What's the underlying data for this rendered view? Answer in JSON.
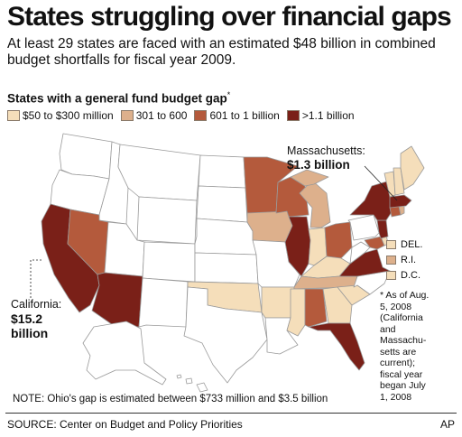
{
  "title": "States struggling over financial gaps",
  "subtitle": "At least 29 states are faced with an estimated $48 billion in combined budget shortfalls for fiscal year 2009.",
  "legend": {
    "title": "States with a general fund budget gap",
    "title_mark": "*",
    "items": [
      {
        "label": "$50 to $300 million",
        "color": "#f5deba"
      },
      {
        "label": "301 to 600",
        "color": "#ddb08c"
      },
      {
        "label": "601 to 1 billion",
        "color": "#b45a3c"
      },
      {
        "label": ">1.1 billion",
        "color": "#7a2018"
      }
    ]
  },
  "colors": {
    "no_gap": "#ffffff",
    "border": "#9a9a9a"
  },
  "callouts": {
    "massachusetts": {
      "name": "Massachusetts:",
      "value": "$1.3 billion"
    },
    "california": {
      "name": "California:",
      "value_line1": "$15.2",
      "value_line2": "billion"
    }
  },
  "small_states": [
    {
      "label": "DEL.",
      "color": "#f5deba"
    },
    {
      "label": "R.I.",
      "color": "#ddb08c"
    },
    {
      "label": "D.C.",
      "color": "#f5deba"
    }
  ],
  "footnote": [
    "* As of Aug.",
    "5, 2008",
    "(California",
    "and",
    "Massachu-",
    "setts are",
    "current);",
    "fiscal year",
    "began July",
    "1, 2008"
  ],
  "note": "NOTE: Ohio's gap is estimated between $733 million and $3.5 billion",
  "source": "SOURCE: Center on Budget and Policy Priorities",
  "credit": "AP",
  "states": [
    {
      "name": "California",
      "category": 4
    },
    {
      "name": "Nevada",
      "category": 3
    },
    {
      "name": "Arizona",
      "category": 4
    },
    {
      "name": "Minnesota",
      "category": 3
    },
    {
      "name": "Wisconsin",
      "category": 3
    },
    {
      "name": "Iowa",
      "category": 2
    },
    {
      "name": "Illinois",
      "category": 4
    },
    {
      "name": "Michigan",
      "category": 2
    },
    {
      "name": "Indiana",
      "category": 1
    },
    {
      "name": "Ohio",
      "category": 3
    },
    {
      "name": "Kentucky",
      "category": 1
    },
    {
      "name": "Tennessee",
      "category": 2
    },
    {
      "name": "Alabama",
      "category": 3
    },
    {
      "name": "Mississippi",
      "category": 1
    },
    {
      "name": "Georgia",
      "category": 1
    },
    {
      "name": "South Carolina",
      "category": 1
    },
    {
      "name": "Florida",
      "category": 4
    },
    {
      "name": "Virginia",
      "category": 4
    },
    {
      "name": "Maryland",
      "category": 3
    },
    {
      "name": "New Jersey",
      "category": 4
    },
    {
      "name": "New York",
      "category": 4
    },
    {
      "name": "Connecticut",
      "category": 3
    },
    {
      "name": "Massachusetts",
      "category": 4
    },
    {
      "name": "Rhode Island",
      "category": 2
    },
    {
      "name": "Vermont",
      "category": 1
    },
    {
      "name": "New Hampshire",
      "category": 1
    },
    {
      "name": "Maine",
      "category": 1
    },
    {
      "name": "Delaware",
      "category": 1
    },
    {
      "name": "Oklahoma",
      "category": 1
    },
    {
      "name": "Arkansas",
      "category": 1
    },
    {
      "name": "Washington",
      "category": 0
    },
    {
      "name": "Oregon",
      "category": 0
    },
    {
      "name": "Idaho",
      "category": 0
    },
    {
      "name": "Montana",
      "category": 0
    },
    {
      "name": "Wyoming",
      "category": 0
    },
    {
      "name": "Utah",
      "category": 0
    },
    {
      "name": "Colorado",
      "category": 0
    },
    {
      "name": "New Mexico",
      "category": 0
    },
    {
      "name": "North Dakota",
      "category": 0
    },
    {
      "name": "South Dakota",
      "category": 0
    },
    {
      "name": "Nebraska",
      "category": 0
    },
    {
      "name": "Kansas",
      "category": 0
    },
    {
      "name": "Texas",
      "category": 0
    },
    {
      "name": "Missouri",
      "category": 0
    },
    {
      "name": "Louisiana",
      "category": 0
    },
    {
      "name": "West Virginia",
      "category": 0
    },
    {
      "name": "Pennsylvania",
      "category": 0
    },
    {
      "name": "North Carolina",
      "category": 0
    },
    {
      "name": "Alaska",
      "category": 0
    },
    {
      "name": "Hawaii",
      "category": 0
    }
  ]
}
